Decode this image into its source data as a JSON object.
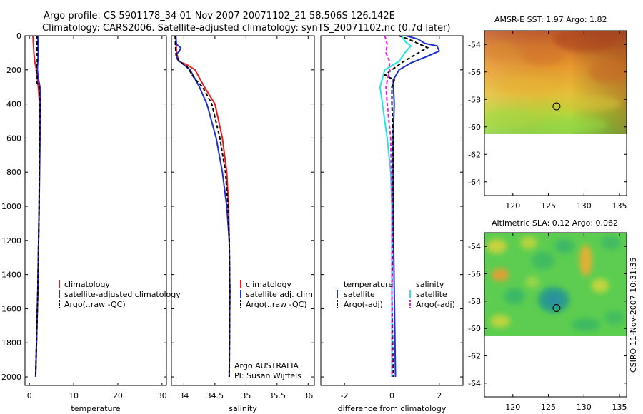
{
  "title_line1": "Argo profile: CS 5901178_34 01-Nov-2007 20071102_21 58.506S 126.142E",
  "title_line2": "Climatology: CARS2006. Satellite-adjusted climatology: synTS_20071102.nc (0.7d later)",
  "side_stamp": "CSIRO 11-Nov-2007 10:31:35",
  "colors": {
    "climatology": "#ee1c1c",
    "satellite": "#1e2fd6",
    "argo": "#000000",
    "sal_satellite": "#22e6e6",
    "sal_argo": "#e61ee6"
  },
  "chart_data": [
    {
      "type": "line",
      "id": "temperature",
      "xlabel": "temperature",
      "ylabel": "",
      "xlim": [
        -1,
        31
      ],
      "ylim": [
        0,
        2050
      ],
      "xticks": [
        0,
        10,
        20,
        30
      ],
      "yticks": [
        0,
        200,
        400,
        600,
        800,
        1000,
        1200,
        1400,
        1600,
        1800,
        2000
      ],
      "legend": [
        "climatology",
        "satellite-adjusted climatology",
        "Argo(..raw -QC)"
      ],
      "series": [
        {
          "name": "climatology",
          "style": "solid",
          "color": "climatology",
          "points": [
            [
              0.8,
              0
            ],
            [
              1.0,
              100
            ],
            [
              1.2,
              150
            ],
            [
              1.6,
              200
            ],
            [
              2.0,
              300
            ],
            [
              2.3,
              400
            ],
            [
              2.3,
              600
            ],
            [
              2.2,
              1000
            ],
            [
              1.9,
              1500
            ],
            [
              1.6,
              1800
            ],
            [
              1.4,
              2000
            ]
          ]
        },
        {
          "name": "satellite-adjusted climatology",
          "style": "solid",
          "color": "satellite",
          "points": [
            [
              1.9,
              0
            ],
            [
              2.0,
              100
            ],
            [
              1.9,
              150
            ],
            [
              1.8,
              200
            ],
            [
              2.0,
              250
            ],
            [
              2.4,
              300
            ],
            [
              2.5,
              400
            ],
            [
              2.4,
              600
            ],
            [
              2.2,
              1000
            ],
            [
              1.9,
              1500
            ],
            [
              1.6,
              1800
            ],
            [
              1.4,
              2000
            ]
          ]
        },
        {
          "name": "Argo(..raw -QC)",
          "style": "dashed",
          "color": "argo",
          "points": [
            [
              1.7,
              0
            ],
            [
              1.8,
              150
            ],
            [
              1.5,
              200
            ],
            [
              1.8,
              240
            ],
            [
              1.6,
              270
            ],
            [
              2.2,
              300
            ],
            [
              2.4,
              400
            ],
            [
              2.3,
              600
            ],
            [
              2.2,
              1000
            ],
            [
              1.9,
              1500
            ],
            [
              1.6,
              1800
            ],
            [
              1.4,
              2000
            ]
          ]
        }
      ]
    },
    {
      "type": "line",
      "id": "salinity",
      "xlabel": "salinity",
      "ylabel": "",
      "xlim": [
        33.8,
        36.1
      ],
      "ylim": [
        0,
        2050
      ],
      "xticks": [
        34,
        34.5,
        35,
        35.5,
        36
      ],
      "xticklabels": [
        "34",
        "34.5",
        "35",
        "35.5",
        "36"
      ],
      "yticks": [
        0,
        200,
        400,
        600,
        800,
        1000,
        1200,
        1400,
        1600,
        1800,
        2000
      ],
      "legend": [
        "climatology",
        "satellite adj. clim.",
        "Argo(..raw -QC)"
      ],
      "annotations": [
        "Argo AUSTRALIA",
        "PI: Susan Wijffels"
      ],
      "series": [
        {
          "name": "climatology",
          "style": "solid",
          "color": "climatology",
          "points": [
            [
              33.87,
              0
            ],
            [
              33.88,
              100
            ],
            [
              33.92,
              150
            ],
            [
              34.05,
              170
            ],
            [
              34.18,
              200
            ],
            [
              34.33,
              300
            ],
            [
              34.5,
              400
            ],
            [
              34.62,
              600
            ],
            [
              34.69,
              800
            ],
            [
              34.72,
              1000
            ],
            [
              34.73,
              1200
            ],
            [
              34.74,
              1500
            ],
            [
              34.73,
              2000
            ]
          ]
        },
        {
          "name": "satellite adj. clim.",
          "style": "solid",
          "color": "satellite",
          "points": [
            [
              33.87,
              0
            ],
            [
              33.88,
              50
            ],
            [
              33.95,
              70
            ],
            [
              33.93,
              90
            ],
            [
              33.87,
              110
            ],
            [
              33.9,
              140
            ],
            [
              34.0,
              170
            ],
            [
              34.1,
              200
            ],
            [
              34.25,
              300
            ],
            [
              34.37,
              400
            ],
            [
              34.52,
              600
            ],
            [
              34.62,
              800
            ],
            [
              34.69,
              1000
            ],
            [
              34.73,
              1200
            ],
            [
              34.74,
              1500
            ],
            [
              34.73,
              2000
            ]
          ]
        },
        {
          "name": "Argo(..raw -QC)",
          "style": "dashed",
          "color": "argo",
          "points": [
            [
              33.86,
              0
            ],
            [
              33.87,
              100
            ],
            [
              33.92,
              150
            ],
            [
              34.05,
              180
            ],
            [
              34.17,
              250
            ],
            [
              34.3,
              300
            ],
            [
              34.45,
              400
            ],
            [
              34.58,
              600
            ],
            [
              34.67,
              800
            ],
            [
              34.71,
              1000
            ],
            [
              34.73,
              1200
            ],
            [
              34.74,
              1500
            ],
            [
              34.73,
              2000
            ]
          ]
        }
      ]
    },
    {
      "type": "line",
      "id": "difference",
      "xlabel": "difference from climatology",
      "ylabel": "",
      "xlim": [
        -3,
        3
      ],
      "ylim": [
        0,
        2050
      ],
      "xticks": [
        -2,
        0,
        2
      ],
      "yticks": [
        0,
        200,
        400,
        600,
        800,
        1000,
        1200,
        1400,
        1600,
        1800,
        2000
      ],
      "legend_groups": [
        {
          "heading": "temperature",
          "entries": [
            "satellite",
            "Argo(-adj)"
          ]
        },
        {
          "heading": "salinity",
          "entries": [
            "satellite",
            "Argo(-adj)"
          ]
        }
      ],
      "series": [
        {
          "name": "temperature satellite",
          "style": "solid",
          "color": "satellite",
          "points": [
            [
              0.6,
              0
            ],
            [
              1.1,
              20
            ],
            [
              1.4,
              45
            ],
            [
              1.9,
              60
            ],
            [
              2.0,
              90
            ],
            [
              1.5,
              120
            ],
            [
              0.8,
              160
            ],
            [
              0.3,
              200
            ],
            [
              0.05,
              260
            ],
            [
              0.1,
              400
            ],
            [
              0.05,
              600
            ],
            [
              0.05,
              1000
            ],
            [
              0.1,
              1500
            ],
            [
              0.15,
              2000
            ]
          ]
        },
        {
          "name": "temperature Argo(-adj)",
          "style": "dashed",
          "color": "argo",
          "points": [
            [
              0.3,
              0
            ],
            [
              0.7,
              20
            ],
            [
              1.1,
              45
            ],
            [
              1.5,
              70
            ],
            [
              1.0,
              110
            ],
            [
              0.5,
              150
            ],
            [
              0.0,
              200
            ],
            [
              -0.3,
              230
            ],
            [
              0.1,
              260
            ],
            [
              0.0,
              300
            ],
            [
              0.0,
              400
            ],
            [
              0.05,
              600
            ],
            [
              0.05,
              1000
            ],
            [
              0.0,
              1500
            ],
            [
              0.05,
              2000
            ]
          ]
        },
        {
          "name": "salinity satellite",
          "style": "solid",
          "color": "sal_satellite",
          "points": [
            [
              0.4,
              0
            ],
            [
              0.6,
              40
            ],
            [
              0.8,
              60
            ],
            [
              0.6,
              90
            ],
            [
              0.3,
              150
            ],
            [
              -0.3,
              200
            ],
            [
              -0.5,
              300
            ],
            [
              -0.4,
              400
            ],
            [
              -0.2,
              600
            ],
            [
              -0.05,
              800
            ],
            [
              0.0,
              1000
            ],
            [
              0.0,
              1500
            ],
            [
              0.0,
              2000
            ]
          ]
        },
        {
          "name": "salinity Argo(-adj)",
          "style": "dashed",
          "color": "sal_argo",
          "points": [
            [
              -0.3,
              0
            ],
            [
              -0.2,
              50
            ],
            [
              -0.25,
              100
            ],
            [
              -0.1,
              150
            ],
            [
              -0.1,
              200
            ],
            [
              -0.25,
              300
            ],
            [
              -0.2,
              400
            ],
            [
              -0.05,
              600
            ],
            [
              0.0,
              1000
            ],
            [
              0.0,
              1500
            ],
            [
              0.0,
              2000
            ]
          ]
        }
      ]
    },
    {
      "type": "heatmap",
      "id": "sst_map",
      "title": "AMSR-E SST: 1.97 Argo: 1.82",
      "xlim": [
        116,
        136
      ],
      "ylim": [
        -65,
        -53
      ],
      "xticks": [
        120,
        125,
        130,
        135
      ],
      "yticks": [
        -54,
        -56,
        -58,
        -60,
        -62,
        -64
      ],
      "data_ylim": [
        -60,
        -53
      ],
      "marker": {
        "lon": 126.142,
        "lat": -58.506
      }
    },
    {
      "type": "heatmap",
      "id": "sla_map",
      "title": "Altimetric SLA: 0.12 Argo: 0.062",
      "xlim": [
        116,
        136
      ],
      "ylim": [
        -65,
        -53
      ],
      "xticks": [
        120,
        125,
        130,
        135
      ],
      "yticks": [
        -54,
        -56,
        -58,
        -60,
        -62,
        -64
      ],
      "data_ylim": [
        -60,
        -53
      ],
      "marker": {
        "lon": 126.142,
        "lat": -58.506
      }
    }
  ]
}
